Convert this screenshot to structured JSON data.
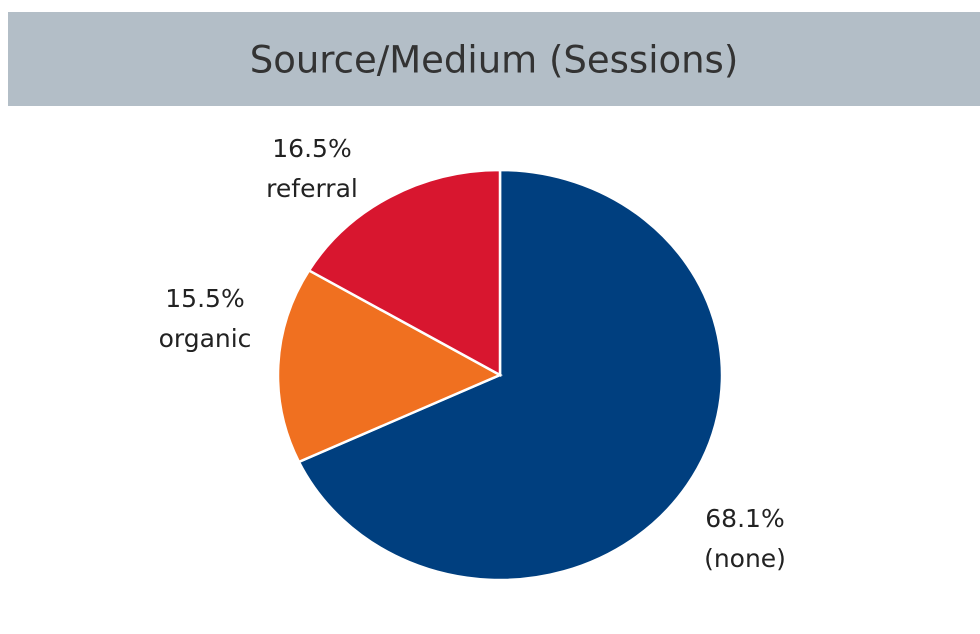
{
  "chart_data": {
    "type": "pie",
    "title": "Source/Medium (Sessions)",
    "categories": [
      "(none)",
      "organic",
      "referral"
    ],
    "values": [
      68.1,
      15.5,
      16.5
    ],
    "value_labels": [
      "68.1%",
      "15.5%",
      "16.5%"
    ],
    "colors": [
      "#003f7f",
      "#f07020",
      "#d8162f"
    ]
  }
}
